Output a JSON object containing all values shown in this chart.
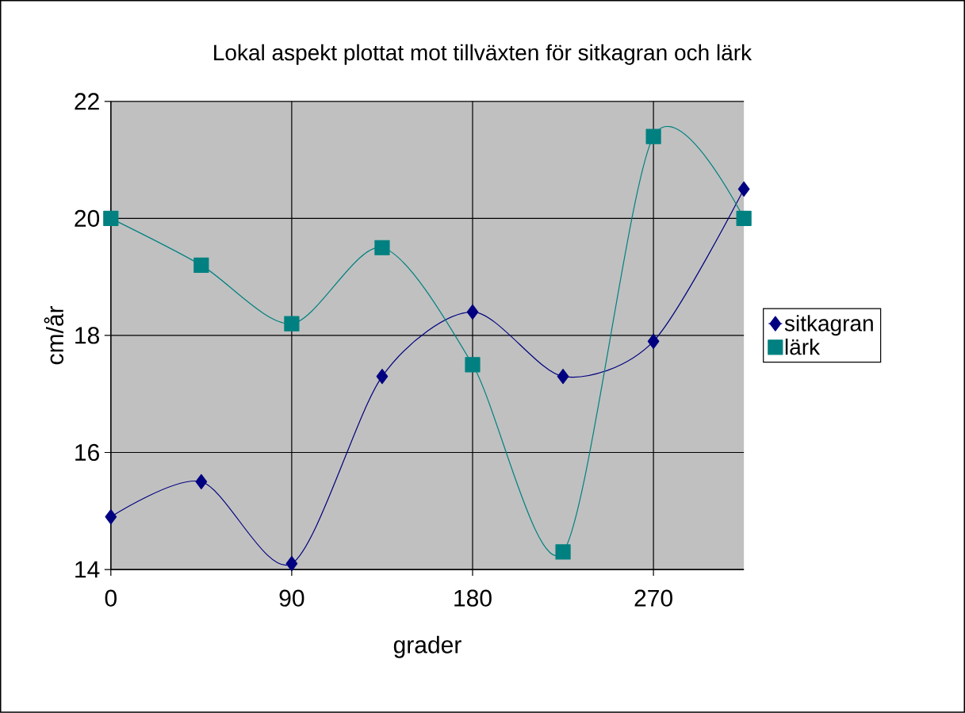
{
  "chart_data": {
    "type": "line",
    "title": "Lokal aspekt plottat mot tillväxten för sitkagran och lärk",
    "xlabel": "grader",
    "ylabel": "cm/år",
    "x": [
      0,
      45,
      90,
      135,
      180,
      225,
      270,
      315
    ],
    "series": [
      {
        "name": "sitkagran",
        "color": "#000080",
        "marker": "diamond",
        "values": [
          14.9,
          15.5,
          14.1,
          17.3,
          18.4,
          17.3,
          17.9,
          20.5
        ]
      },
      {
        "name": "lärk",
        "color": "#008080",
        "marker": "square",
        "values": [
          20.0,
          19.2,
          18.2,
          19.5,
          17.5,
          14.3,
          21.4,
          20.0
        ]
      }
    ],
    "xlim": [
      0,
      315
    ],
    "xticks": [
      0,
      90,
      180,
      270
    ],
    "ylim": [
      14,
      22
    ],
    "yticks": [
      14,
      16,
      18,
      20,
      22
    ],
    "grid": true,
    "legend": "right"
  }
}
